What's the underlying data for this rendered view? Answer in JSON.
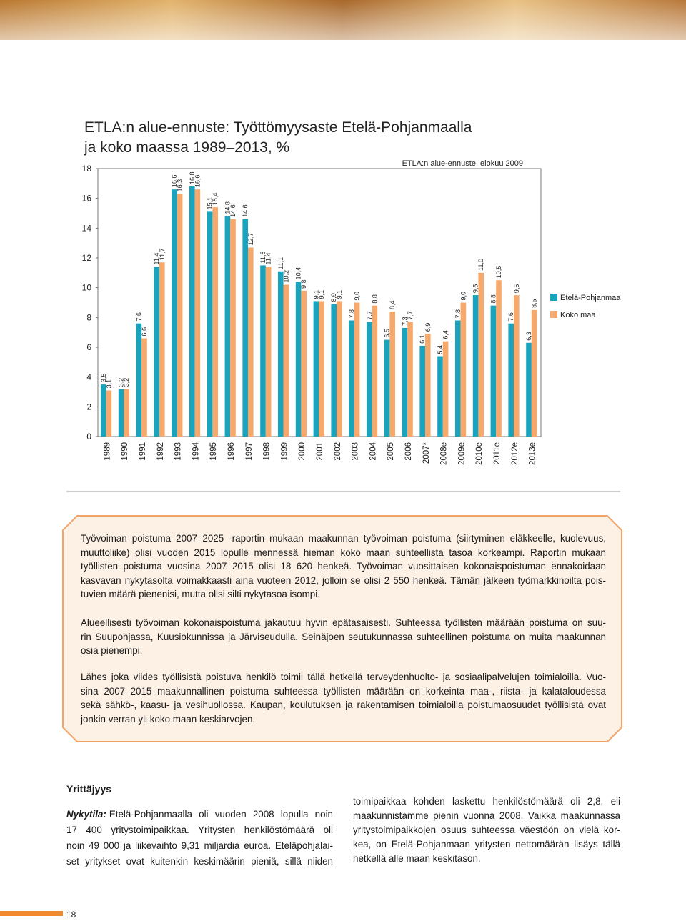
{
  "chart_data": {
    "type": "bar",
    "title": [
      "ETLA:n alue-ennuste: Työttömyysaste Etelä-Pohjanmaalla",
      "ja koko maassa 1989–2013, %"
    ],
    "annotation": "ETLA:n alue-ennuste, elokuu 2009",
    "categories": [
      "1989",
      "1990",
      "1991",
      "1992",
      "1993",
      "1994",
      "1995",
      "1996",
      "1997",
      "1998",
      "1999",
      "2000",
      "2001",
      "2002",
      "2003",
      "2004",
      "2005",
      "2006",
      "2007*",
      "2008e",
      "2009e",
      "2010e",
      "2011e",
      "2012e",
      "2013e"
    ],
    "series": [
      {
        "name": "Etelä-Pohjanmaa",
        "color": "#19a3bd",
        "values": [
          3.5,
          3.2,
          7.6,
          11.4,
          16.6,
          16.8,
          15.1,
          14.8,
          14.6,
          11.5,
          11.1,
          10.4,
          9.1,
          8.9,
          7.8,
          7.7,
          6.5,
          7.3,
          6.1,
          5.4,
          7.8,
          9.5,
          8.8,
          7.6,
          6.3
        ],
        "value_labels": [
          "3,5",
          "3,2",
          "7,6",
          "11,4",
          "16,6",
          "16,8",
          "15,1",
          "14,8",
          "14,6",
          "11,5",
          "11,1",
          "10,4",
          "9,1",
          "8,9",
          "7,8",
          "7,7",
          "6,5",
          "7,3",
          "6,1",
          "5,4",
          "7,8",
          "9,5",
          "8,8",
          "7,6",
          "6,3"
        ]
      },
      {
        "name": "Koko maa",
        "color": "#f6a96b",
        "values": [
          3.1,
          3.2,
          6.6,
          11.7,
          16.3,
          16.6,
          15.4,
          14.6,
          12.7,
          11.4,
          10.2,
          9.8,
          9.1,
          9.1,
          9.0,
          8.8,
          8.4,
          7.7,
          6.9,
          6.4,
          9.0,
          11.0,
          10.5,
          9.5,
          8.5
        ],
        "value_labels": [
          "3,1",
          "3,2",
          "6,6",
          "11,7",
          "16,3",
          "16,6",
          "15,4",
          "14,6",
          "12,7",
          "11,4",
          "10,2",
          "9,8",
          "9,1",
          "9,1",
          "9,0",
          "8,8",
          "8,4",
          "7,7",
          "6,9",
          "6,4",
          "9,0",
          "11,0",
          "10,5",
          "9,5",
          "8,5"
        ]
      }
    ],
    "ylim": [
      0,
      18
    ],
    "yticks": [
      0,
      2,
      4,
      6,
      8,
      10,
      12,
      14,
      16,
      18
    ],
    "grid": false,
    "legend": "right"
  },
  "box": {
    "paragraphs": [
      [
        "Työvoiman poistuma 2007–2025 -raportin mukaan maakunnan työvoiman poistuma (siirtyminen eläkkeelle, kuolevuus,",
        "muuttoliike) olisi vuoden 2015 lopulle mennessä hieman koko maan suhteellista tasoa korkeampi. Raportin mukaan",
        "työllisten poistuma vuosina 2007–2015 olisi 18 620 henkeä. Työvoiman vuosittaisen kokonaispoistuman ennakoidaan",
        "kasvavan nykytasolta voimakkaasti aina vuoteen 2012, jolloin se olisi 2 550 henkeä. Tämän jälkeen työmarkkinoilta pois-",
        "tuvien määrä pienenisi, mutta olisi silti nykytasoa isompi."
      ],
      [
        "Alueellisesti työvoiman kokonaispoistuma jakautuu hyvin epätasaisesti. Suhteessa työllisten määrään poistuma on suu-",
        "rin Suupohjassa, Kuusiokunnissa ja Järviseudulla. Seinäjoen seutukunnassa suhteellinen poistuma on muita maakunnan",
        "osia pienempi."
      ],
      [
        "Lähes joka viides työllisistä poistuva henkilö toimii tällä hetkellä terveydenhuolto- ja sosiaalipalvelujen toimialoilla. Vuo-",
        "sina 2007–2015 maakunnallinen poistuma suhteessa työllisten määrään on korkeinta maa-, riista- ja kalataloudessa",
        "sekä sähkö-, kaasu- ja vesihuollossa. Kaupan, koulutuksen ja rakentamisen toimialoilla poistumaosuudet työllisistä ovat",
        "jonkin verran yli koko maan keskiarvojen."
      ]
    ]
  },
  "section": {
    "heading": "Yrittäjyys",
    "left_lead": "Nykytila:",
    "left_lines": [
      "Etelä-Pohjanmaalla oli vuoden 2008 lopulla noin",
      "17 400 yritystoimipaikkaa. Yritysten henkilöstömäärä oli",
      "noin 49 000 ja liikevaihto 9,31 miljardia euroa. Eteläpohjalai-",
      "set yritykset ovat kuitenkin keskimäärin pieniä, sillä niiden"
    ],
    "right_lines": [
      "toimipaikkaa kohden laskettu henkilöstömäärä oli 2,8, eli",
      "maakunnistamme pienin vuonna 2008. Vaikka maakunnassa",
      "yritystoimipaikkojen osuus suhteessa väestöön on vielä kor-",
      "kea, on Etelä-Pohjanmaan yritysten nettomäärän lisäys tällä",
      "hetkellä alle maan keskitason."
    ]
  },
  "page_number": "18"
}
